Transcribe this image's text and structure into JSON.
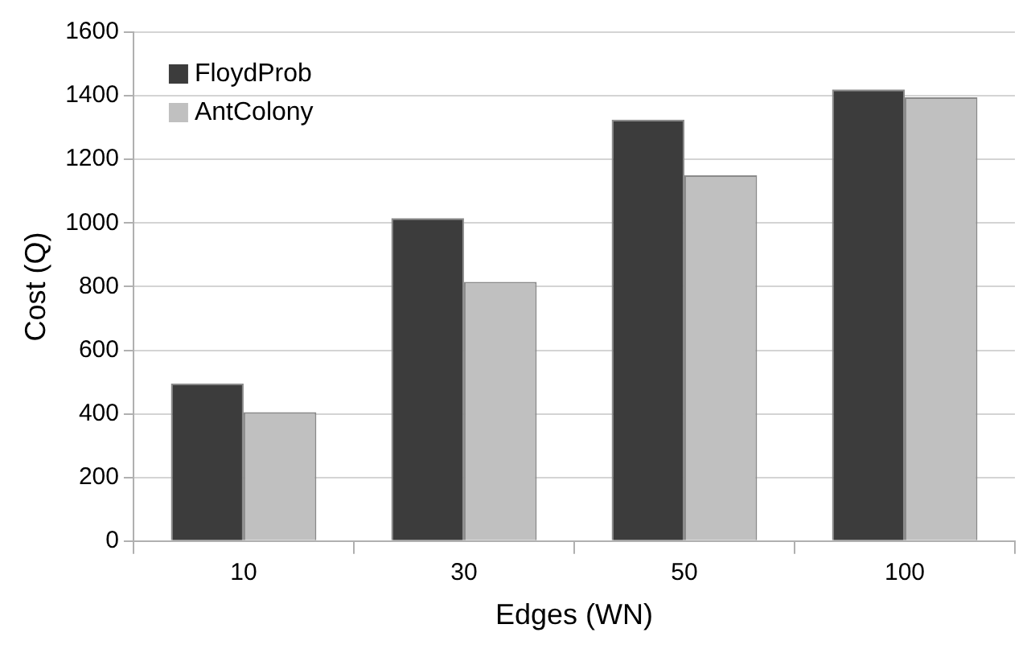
{
  "chart_data": {
    "type": "bar",
    "xlabel": "Edges (WN)",
    "ylabel": "Cost (Q)",
    "categories": [
      "10",
      "30",
      "50",
      "100"
    ],
    "series": [
      {
        "name": "FloydProb",
        "color": "#3c3c3c",
        "values": [
          495,
          1015,
          1325,
          1420
        ]
      },
      {
        "name": "AntColony",
        "color": "#c0c0c0",
        "values": [
          405,
          815,
          1150,
          1395
        ]
      }
    ],
    "ylim": [
      0,
      1600
    ],
    "yticks": [
      0,
      200,
      400,
      600,
      800,
      1000,
      1200,
      1400,
      1600
    ],
    "grid": "y",
    "legend": "top left"
  }
}
